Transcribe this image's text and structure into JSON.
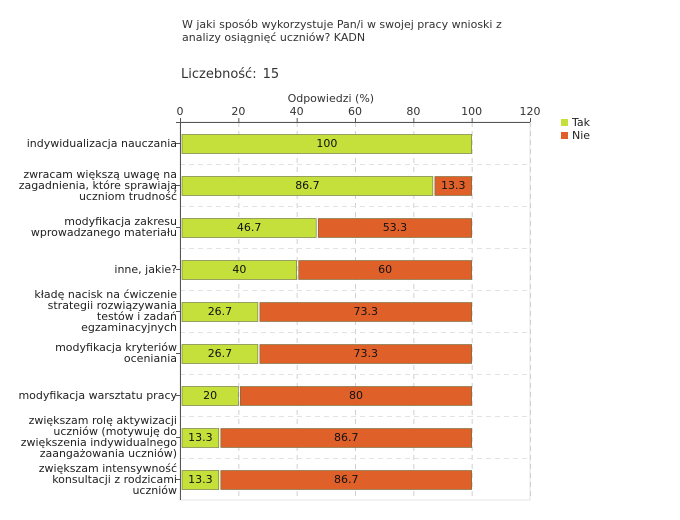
{
  "chart_data": {
    "type": "bar",
    "orientation": "horizontal",
    "stacked": true,
    "title_lines": [
      "W jaki sposób wykorzystuje Pan/i w swojej pracy wnioski z",
      "analizy osiągnięć uczniów? KADN"
    ],
    "count_label": "Liczebność:",
    "count_value": "15",
    "xlabel": "Odpowiedzi (%)",
    "xlim": [
      0,
      120
    ],
    "xticks": [
      0,
      20,
      40,
      60,
      80,
      100,
      120
    ],
    "grid": true,
    "legend_position": "right",
    "categories": [
      {
        "label_lines": [
          "indywidualizacja nauczania"
        ]
      },
      {
        "label_lines": [
          "zwracam większą uwagę na",
          "zagadnienia, które sprawiają",
          "uczniom trudność"
        ]
      },
      {
        "label_lines": [
          "modyfikacja zakresu",
          "wprowadzanego materiału"
        ]
      },
      {
        "label_lines": [
          "inne, jakie?"
        ]
      },
      {
        "label_lines": [
          "kładę nacisk na ćwiczenie",
          "strategii rozwiązywania",
          "testów i zadań",
          "egzaminacyjnych"
        ]
      },
      {
        "label_lines": [
          "modyfikacja kryteriów",
          "oceniania"
        ]
      },
      {
        "label_lines": [
          "modyfikacja warsztatu pracy"
        ]
      },
      {
        "label_lines": [
          "zwiększam rolę aktywizacji",
          "uczniów (motywuję do",
          "zwiększenia indywidualnego",
          "zaangażowania uczniów)"
        ]
      },
      {
        "label_lines": [
          "zwiększam intensywność",
          "konsultacji z rodzicami",
          "uczniów"
        ]
      }
    ],
    "series": [
      {
        "name": "Tak",
        "color": "#c5e03a",
        "values": [
          100,
          86.7,
          46.7,
          40,
          26.7,
          26.7,
          20,
          13.3,
          13.3
        ],
        "value_labels": [
          "100",
          "86.7",
          "46.7",
          "40",
          "26.7",
          "26.7",
          "20",
          "13.3",
          "13.3"
        ]
      },
      {
        "name": "Nie",
        "color": "#e0602a",
        "values": [
          0,
          13.3,
          53.3,
          60,
          73.3,
          73.3,
          80,
          86.7,
          86.7
        ],
        "value_labels": [
          "",
          "13.3",
          "53.3",
          "60",
          "73.3",
          "73.3",
          "80",
          "86.7",
          "86.7"
        ]
      }
    ]
  }
}
